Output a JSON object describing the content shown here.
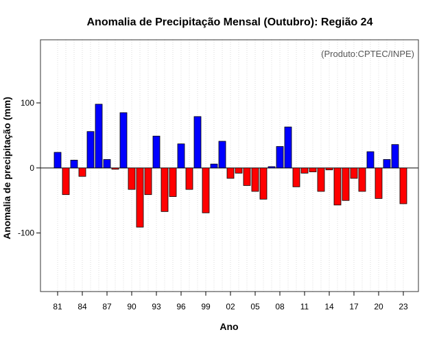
{
  "chart_data": {
    "type": "bar",
    "title": "Anomalia de Precipitação Mensal (Outubro): Região 24",
    "xlabel": "Ano",
    "ylabel": "Anomalia de precipitação (mm)",
    "credit": "(Produto:CPTEC/INPE)",
    "ylim": [
      -190,
      197
    ],
    "yticks": [
      -100,
      0,
      100
    ],
    "ytick_labels": [
      "-100",
      "0",
      "100"
    ],
    "xtick_labels": [
      "81",
      "84",
      "87",
      "90",
      "93",
      "96",
      "99",
      "02",
      "05",
      "08",
      "11",
      "14",
      "17",
      "20",
      "23"
    ],
    "grid": "vertical dotted",
    "positive_color": "#0000ff",
    "negative_color": "#ff0000",
    "categories": [
      "1981",
      "1982",
      "1983",
      "1984",
      "1985",
      "1986",
      "1987",
      "1988",
      "1989",
      "1990",
      "1991",
      "1992",
      "1993",
      "1994",
      "1995",
      "1996",
      "1997",
      "1998",
      "1999",
      "2000",
      "2001",
      "2002",
      "2003",
      "2004",
      "2005",
      "2006",
      "2007",
      "2008",
      "2009",
      "2010",
      "2011",
      "2012",
      "2013",
      "2014",
      "2015",
      "2016",
      "2017",
      "2018",
      "2019",
      "2020",
      "2021",
      "2022",
      "2023"
    ],
    "values": [
      24,
      -41,
      12,
      -13,
      56,
      98,
      13,
      -2,
      85,
      -33,
      -91,
      -41,
      49,
      -67,
      -44,
      37,
      -33,
      79,
      -69,
      6,
      41,
      -16,
      -8,
      -27,
      -36,
      -48,
      2,
      33,
      63,
      -29,
      -8,
      -6,
      -36,
      -3,
      -57,
      -50,
      -16,
      -36,
      25,
      -47,
      13,
      36,
      -55
    ]
  }
}
